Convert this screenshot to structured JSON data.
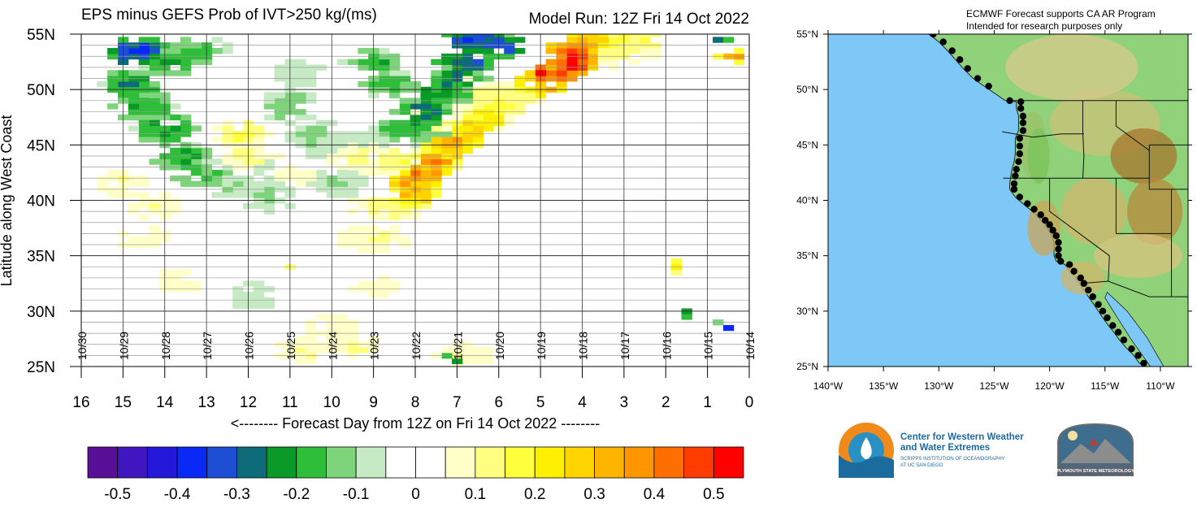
{
  "chart_data": [
    {
      "type": "heatmap",
      "title": "EPS minus GEFS Prob of IVT>250 kg/(ms)",
      "subtitle": "Model Run: 12Z Fri 14 Oct 2022",
      "xlabel": "<-------- Forecast Day from 12Z on Fri 14 Oct 2022 --------",
      "ylabel": "Latitude along West Coast",
      "xlim": [
        16,
        0
      ],
      "ylim": [
        25,
        55
      ],
      "x_ticks": [
        "16",
        "15",
        "14",
        "13",
        "12",
        "11",
        "10",
        "9",
        "8",
        "7",
        "6",
        "5",
        "4",
        "3",
        "2",
        "1",
        "0"
      ],
      "y_ticks": [
        "25N",
        "30N",
        "35N",
        "40N",
        "45N",
        "50N",
        "55N"
      ],
      "date_labels": [
        {
          "day": 16,
          "label": "10/30"
        },
        {
          "day": 15,
          "label": "10/29"
        },
        {
          "day": 14,
          "label": "10/28"
        },
        {
          "day": 13,
          "label": "10/27"
        },
        {
          "day": 12,
          "label": "10/26"
        },
        {
          "day": 11,
          "label": "10/25"
        },
        {
          "day": 10,
          "label": "10/24"
        },
        {
          "day": 9,
          "label": "10/23"
        },
        {
          "day": 8,
          "label": "10/22"
        },
        {
          "day": 7,
          "label": "10/21"
        },
        {
          "day": 6,
          "label": "10/20"
        },
        {
          "day": 5,
          "label": "10/19"
        },
        {
          "day": 4,
          "label": "10/18"
        },
        {
          "day": 3,
          "label": "10/17"
        },
        {
          "day": 2,
          "label": "10/16"
        },
        {
          "day": 1,
          "label": "10/15"
        },
        {
          "day": 0,
          "label": "10/14"
        }
      ],
      "colorbar": {
        "colors": [
          "#5a0f99",
          "#3f16c0",
          "#2418db",
          "#0a28f6",
          "#1d4ed3",
          "#0e6b7a",
          "#0a9a28",
          "#2fbe3a",
          "#7ed47a",
          "#c6ebc4",
          "#ffffff",
          "#ffffff",
          "#ffffc8",
          "#ffff80",
          "#ffff3c",
          "#fff000",
          "#ffd400",
          "#ffb400",
          "#ff9600",
          "#ff6e00",
          "#ff3c00",
          "#ff0000"
        ],
        "labels": [
          "-0.5",
          "-0.4",
          "-0.3",
          "-0.2",
          "-0.1",
          "0",
          "0.1",
          "0.2",
          "0.3",
          "0.4",
          "0.5"
        ],
        "range": [
          -0.55,
          0.55
        ]
      },
      "regions": [
        {
          "name": "ar-main",
          "cells": [
            [
              8.0,
              40.5,
              0.28
            ],
            [
              8.0,
              41.5,
              0.33
            ],
            [
              7.8,
              42.5,
              0.37
            ],
            [
              7.6,
              43.5,
              0.33
            ],
            [
              7.3,
              44.5,
              0.3
            ],
            [
              7.0,
              45.5,
              0.33
            ],
            [
              6.7,
              46.5,
              0.28
            ],
            [
              6.3,
              47.5,
              0.22
            ],
            [
              6.0,
              48.5,
              0.18
            ],
            [
              5.6,
              49.5,
              0.15
            ],
            [
              5.0,
              50.5,
              0.32
            ],
            [
              4.6,
              51.5,
              0.5
            ],
            [
              4.2,
              52.5,
              0.5
            ],
            [
              4.2,
              53.5,
              0.45
            ],
            [
              3.8,
              54.5,
              0.3
            ]
          ],
          "radius": [
            0.55,
            0.9
          ]
        },
        {
          "name": "ar-core",
          "cells": [
            [
              7.8,
              42.0,
              0.38
            ],
            [
              7.5,
              43.5,
              0.4
            ],
            [
              7.2,
              45.0,
              0.36
            ],
            [
              4.5,
              52.0,
              0.52
            ],
            [
              5.0,
              51.5,
              0.5
            ]
          ],
          "radius": [
            0.3,
            0.6
          ]
        },
        {
          "name": "ar-halo",
          "cells": [
            [
              8.6,
              39.5,
              0.12
            ],
            [
              8.3,
              43.5,
              0.12
            ],
            [
              7.4,
              47.0,
              0.12
            ],
            [
              6.6,
              49.5,
              0.12
            ],
            [
              3.2,
              53.5,
              0.12
            ],
            [
              2.8,
              54.5,
              0.15
            ],
            [
              9.0,
              36.5,
              0.1
            ],
            [
              9.4,
              44.0,
              0.1
            ]
          ],
          "radius": [
            0.8,
            1.2
          ]
        },
        {
          "name": "green-ridge",
          "cells": [
            [
              8.2,
              46.5,
              -0.2
            ],
            [
              7.8,
              48.0,
              -0.25
            ],
            [
              7.4,
              49.5,
              -0.22
            ],
            [
              7.0,
              51.0,
              -0.25
            ],
            [
              6.8,
              52.5,
              -0.3
            ],
            [
              6.0,
              54.0,
              -0.3
            ],
            [
              6.6,
              54.5,
              -0.35
            ],
            [
              8.6,
              50.5,
              -0.18
            ],
            [
              9.0,
              52.5,
              -0.18
            ],
            [
              7.5,
              45.5,
              -0.15
            ]
          ],
          "radius": [
            0.6,
            1.0
          ]
        },
        {
          "name": "green-left",
          "cells": [
            [
              14.8,
              50.5,
              -0.22
            ],
            [
              14.5,
              48.5,
              -0.2
            ],
            [
              14.0,
              46.5,
              -0.22
            ],
            [
              13.6,
              44.0,
              -0.2
            ],
            [
              13.2,
              42.5,
              -0.18
            ],
            [
              13.8,
              52.5,
              -0.2
            ],
            [
              14.7,
              53.5,
              -0.35
            ],
            [
              13.2,
              53.5,
              -0.18
            ],
            [
              12.5,
              41.5,
              -0.1
            ],
            [
              12.0,
              43.5,
              -0.08
            ]
          ],
          "radius": [
            0.6,
            1.1
          ]
        },
        {
          "name": "green-mid",
          "cells": [
            [
              11.0,
              48.5,
              -0.13
            ],
            [
              10.5,
              46.0,
              -0.12
            ],
            [
              10.0,
              45.0,
              -0.1
            ],
            [
              11.5,
              40.5,
              -0.12
            ],
            [
              9.8,
              41.5,
              -0.1
            ],
            [
              9.2,
              45.5,
              -0.08
            ],
            [
              10.8,
              51.5,
              -0.08
            ],
            [
              11.9,
              31.5,
              -0.08
            ]
          ],
          "radius": [
            0.6,
            1.2
          ]
        },
        {
          "name": "yellow-scatter",
          "cells": [
            [
              10.0,
              28.5,
              0.1
            ],
            [
              9.5,
              27.0,
              0.1
            ],
            [
              10.6,
              26.5,
              0.1
            ],
            [
              13.7,
              32.5,
              0.08
            ],
            [
              12.2,
              46.0,
              0.15
            ],
            [
              12.0,
              44.0,
              0.12
            ],
            [
              15.0,
              41.5,
              0.1
            ],
            [
              14.3,
              39.5,
              0.1
            ],
            [
              6.8,
              26.0,
              0.1
            ],
            [
              11.0,
              42.0,
              0.08
            ],
            [
              8.9,
              32.0,
              0.08
            ],
            [
              14.5,
              36.5,
              0.08
            ]
          ],
          "radius": [
            0.6,
            1.0
          ]
        },
        {
          "name": "ne-corner",
          "cells": [
            [
              3.2,
              53.5,
              0.14
            ],
            [
              2.5,
              54.0,
              0.12
            ],
            [
              0.4,
              53.0,
              0.35
            ]
          ],
          "radius": [
            0.3,
            0.5
          ]
        },
        {
          "name": "specks",
          "cells": [
            [
              1.8,
              33.7,
              0.2
            ],
            [
              1.7,
              34.2,
              0.35
            ],
            [
              1.4,
              29.7,
              -0.22
            ],
            [
              1.5,
              30.2,
              -0.25
            ],
            [
              0.6,
              28.3,
              -0.5
            ],
            [
              0.4,
              28.7,
              -0.45
            ],
            [
              0.8,
              28.8,
              -0.2
            ],
            [
              6.9,
              25.5,
              -0.22
            ],
            [
              7.2,
              26.0,
              -0.2
            ],
            [
              0.7,
              54.3,
              -0.4
            ],
            [
              0.4,
              54.7,
              -0.3
            ],
            [
              11.0,
              34.0,
              0.1
            ]
          ],
          "radius": [
            0.15,
            0.25
          ]
        }
      ]
    },
    {
      "type": "map",
      "note_lines": [
        "ECMWF Forecast supports CA AR Program",
        "Intended for research purposes only"
      ],
      "lon_ticks": [
        "140°W",
        "135°W",
        "130°W",
        "125°W",
        "120°W",
        "115°W",
        "110°W"
      ],
      "lat_ticks": [
        "25°N",
        "30°N",
        "35°N",
        "40°N",
        "45°N",
        "50°N",
        "55°N"
      ],
      "lon_range": [
        -140,
        -107.5
      ],
      "lat_range": [
        25,
        55
      ],
      "ocean_color": "#7ec8f8",
      "land_color": "#8fd27a",
      "coast_points": [
        [
          -130.5,
          55.0
        ],
        [
          -129.6,
          54.3
        ],
        [
          -128.8,
          53.5
        ],
        [
          -128.1,
          52.7
        ],
        [
          -127.4,
          51.9
        ],
        [
          -126.5,
          51.0
        ],
        [
          -125.5,
          50.3
        ],
        [
          -123.6,
          49.0
        ],
        [
          -122.6,
          48.9
        ],
        [
          -122.6,
          48.3
        ],
        [
          -122.4,
          47.6
        ],
        [
          -122.4,
          47.0
        ],
        [
          -122.4,
          46.3
        ],
        [
          -122.7,
          45.6
        ],
        [
          -122.7,
          44.9
        ],
        [
          -122.7,
          44.2
        ],
        [
          -122.8,
          43.5
        ],
        [
          -123.0,
          42.8
        ],
        [
          -123.1,
          42.2
        ],
        [
          -123.2,
          41.5
        ],
        [
          -123.2,
          41.0
        ],
        [
          -122.7,
          40.3
        ],
        [
          -122.0,
          39.7
        ],
        [
          -121.4,
          39.2
        ],
        [
          -120.8,
          38.7
        ],
        [
          -120.4,
          38.2
        ],
        [
          -120.0,
          37.8
        ],
        [
          -119.7,
          37.3
        ],
        [
          -119.4,
          36.8
        ],
        [
          -119.2,
          36.2
        ],
        [
          -119.2,
          35.6
        ],
        [
          -119.2,
          35.0
        ],
        [
          -119.0,
          34.5
        ],
        [
          -118.2,
          34.2
        ],
        [
          -117.8,
          33.6
        ],
        [
          -117.2,
          33.0
        ],
        [
          -116.9,
          32.5
        ],
        [
          -116.5,
          31.9
        ],
        [
          -116.1,
          31.3
        ],
        [
          -115.6,
          30.6
        ],
        [
          -115.2,
          30.0
        ],
        [
          -114.8,
          29.4
        ],
        [
          -114.3,
          28.7
        ],
        [
          -113.8,
          28.1
        ],
        [
          -113.3,
          27.4
        ],
        [
          -112.6,
          26.6
        ],
        [
          -112.0,
          26.0
        ],
        [
          -111.5,
          25.3
        ]
      ],
      "logos": [
        {
          "name": "cw3e",
          "line1": "Center for Western Weather",
          "line2": "and Water Extremes",
          "line3": "SCRIPPS INSTITUTION OF OCEANOGRAPHY",
          "line4": "AT UC SAN DIEGO"
        },
        {
          "name": "plymouth",
          "text": "PLYMOUTH STATE METEOROLOGY"
        }
      ]
    }
  ]
}
